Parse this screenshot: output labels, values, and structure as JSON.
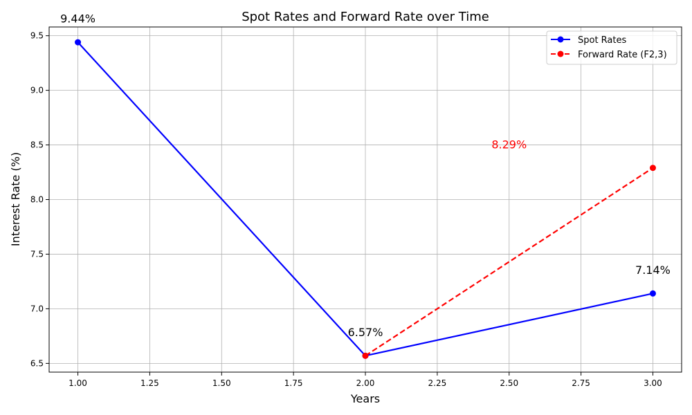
{
  "chart_data": {
    "type": "line",
    "title": "Spot Rates and Forward Rate over Time",
    "xlabel": "Years",
    "ylabel": "Interest Rate (%)",
    "xlim": [
      0.9,
      3.1
    ],
    "ylim": [
      6.42,
      9.58
    ],
    "xticks": [
      1.0,
      1.25,
      1.5,
      1.75,
      2.0,
      2.25,
      2.5,
      2.75,
      3.0
    ],
    "xtick_labels": [
      "1.00",
      "1.25",
      "1.50",
      "1.75",
      "2.00",
      "2.25",
      "2.50",
      "2.75",
      "3.00"
    ],
    "yticks": [
      6.5,
      7.0,
      7.5,
      8.0,
      8.5,
      9.0,
      9.5
    ],
    "ytick_labels": [
      "6.5",
      "7.0",
      "7.5",
      "8.0",
      "8.5",
      "9.0",
      "9.5"
    ],
    "grid": true,
    "legend_position": "top-right",
    "series": [
      {
        "name": "Spot Rates",
        "color": "#0000ff",
        "linestyle": "solid",
        "marker": "circle",
        "x": [
          1,
          2,
          3
        ],
        "y": [
          9.44,
          6.57,
          7.14
        ]
      },
      {
        "name": "Forward Rate (F2,3)",
        "color": "#ff0000",
        "linestyle": "dashed",
        "marker": "circle",
        "x": [
          2,
          3
        ],
        "y": [
          6.57,
          8.29
        ]
      }
    ],
    "annotations": [
      {
        "text": "9.44%",
        "x": 1.0,
        "y": 9.62,
        "color": "#000000"
      },
      {
        "text": "6.57%",
        "x": 2.0,
        "y": 6.75,
        "color": "#000000"
      },
      {
        "text": "7.14%",
        "x": 3.0,
        "y": 7.32,
        "color": "#000000"
      },
      {
        "text": "8.29%",
        "x": 2.5,
        "y": 8.47,
        "color": "#ff0000"
      }
    ]
  }
}
